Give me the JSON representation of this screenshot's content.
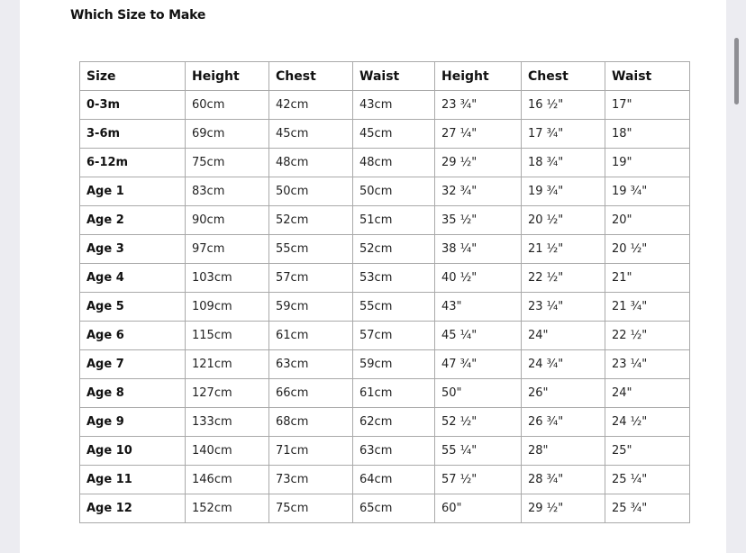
{
  "title": "Which Size to Make",
  "table": {
    "headers": [
      "Size",
      "Height",
      "Chest",
      "Waist",
      "Height",
      "Chest",
      "Waist"
    ],
    "rows": [
      [
        "0-3m",
        "60cm",
        "42cm",
        "43cm",
        "23 ¾\"",
        "16 ½\"",
        "17\""
      ],
      [
        "3-6m",
        "69cm",
        "45cm",
        "45cm",
        "27 ¼\"",
        "17 ¾\"",
        "18\""
      ],
      [
        "6-12m",
        "75cm",
        "48cm",
        "48cm",
        "29 ½\"",
        "18 ¾\"",
        "19\""
      ],
      [
        "Age 1",
        "83cm",
        "50cm",
        "50cm",
        "32 ¾\"",
        "19 ¾\"",
        "19 ¾\""
      ],
      [
        "Age 2",
        "90cm",
        "52cm",
        "51cm",
        "35 ½\"",
        "20 ½\"",
        "20\""
      ],
      [
        "Age 3",
        "97cm",
        "55cm",
        "52cm",
        "38 ¼\"",
        "21 ½\"",
        "20 ½\""
      ],
      [
        "Age 4",
        "103cm",
        "57cm",
        "53cm",
        "40 ½\"",
        "22 ½\"",
        "21\""
      ],
      [
        "Age 5",
        "109cm",
        "59cm",
        "55cm",
        "43\"",
        "23 ¼\"",
        "21 ¾\""
      ],
      [
        "Age 6",
        "115cm",
        "61cm",
        "57cm",
        "45 ¼\"",
        "24\"",
        "22 ½\""
      ],
      [
        "Age 7",
        "121cm",
        "63cm",
        "59cm",
        "47 ¾\"",
        "24 ¾\"",
        "23 ¼\""
      ],
      [
        "Age 8",
        "127cm",
        "66cm",
        "61cm",
        "50\"",
        "26\"",
        "24\""
      ],
      [
        "Age 9",
        "133cm",
        "68cm",
        "62cm",
        "52 ½\"",
        "26 ¾\"",
        "24 ½\""
      ],
      [
        "Age 10",
        "140cm",
        "71cm",
        "63cm",
        "55 ¼\"",
        "28\"",
        "25\""
      ],
      [
        "Age 11",
        "146cm",
        "73cm",
        "64cm",
        "57 ½\"",
        "28 ¾\"",
        "25 ¼\""
      ],
      [
        "Age 12",
        "152cm",
        "75cm",
        "65cm",
        "60\"",
        "29 ½\"",
        "25 ¾\""
      ]
    ]
  }
}
